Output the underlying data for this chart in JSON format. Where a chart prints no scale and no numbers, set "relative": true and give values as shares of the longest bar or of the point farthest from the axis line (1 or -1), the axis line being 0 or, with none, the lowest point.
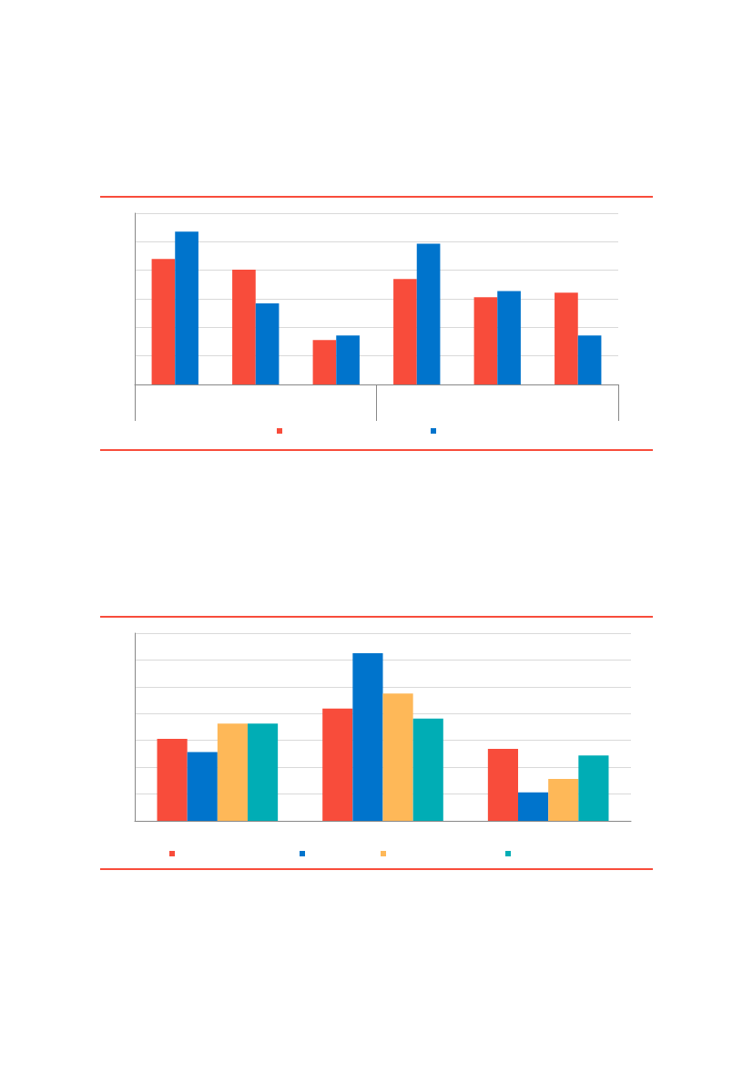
{
  "chart_data": [
    {
      "type": "bar",
      "relative": true,
      "categories": [
        null,
        null,
        null,
        null,
        null,
        null
      ],
      "grid": "y",
      "series": [
        {
          "color": "#f84c3b",
          "values": [
            0.82,
            0.75,
            0.29,
            0.69,
            0.57,
            0.6
          ]
        },
        {
          "color": "#0074cc",
          "values": [
            1,
            0.53,
            0.32,
            0.92,
            0.61,
            0.32
          ]
        }
      ]
    },
    {
      "type": "bar",
      "relative": true,
      "categories": [
        null,
        null,
        null
      ],
      "grid": "y",
      "series": [
        {
          "color": "#f84c3b",
          "values": [
            0.49,
            0.67,
            0.43
          ]
        },
        {
          "color": "#0074cc",
          "values": [
            0.41,
            1,
            0.17
          ]
        },
        {
          "color": "#feb858",
          "values": [
            0.58,
            0.76,
            0.25
          ]
        },
        {
          "color": "#00adb5",
          "values": [
            0.58,
            0.61,
            0.39
          ]
        }
      ]
    }
  ]
}
